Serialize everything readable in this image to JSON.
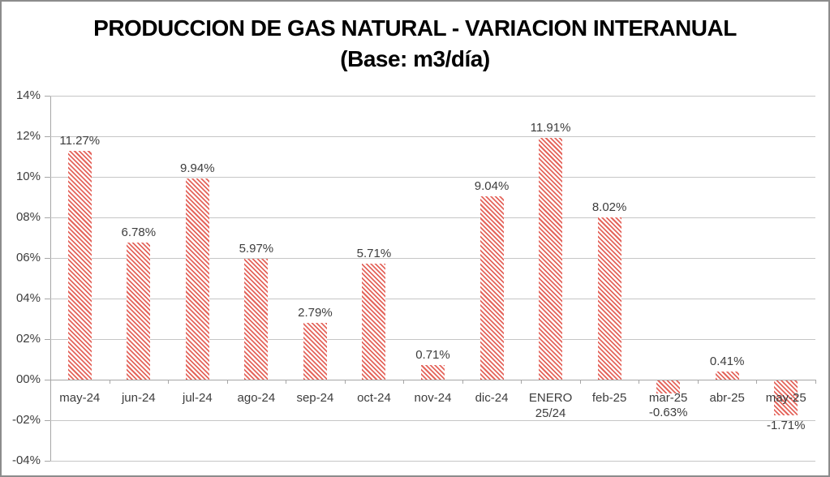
{
  "title": {
    "line1": "PRODUCCION DE GAS NATURAL - VARIACION INTERANUAL",
    "line2": "(Base: m3/día)"
  },
  "chart_data": {
    "type": "bar",
    "title": "PRODUCCION DE GAS NATURAL - VARIACION INTERANUAL (Base: m3/día)",
    "categories": [
      "may-24",
      "jun-24",
      "jul-24",
      "ago-24",
      "sep-24",
      "oct-24",
      "nov-24",
      "dic-24",
      "ENERO\n25/24",
      "feb-25",
      "mar-25",
      "abr-25",
      "may-25"
    ],
    "values": [
      11.27,
      6.78,
      9.94,
      5.97,
      2.79,
      5.71,
      0.71,
      9.04,
      11.91,
      8.02,
      -0.63,
      0.41,
      -1.71
    ],
    "data_labels": [
      "11.27%",
      "6.78%",
      "9.94%",
      "5.97%",
      "2.79%",
      "5.71%",
      "0.71%",
      "9.04%",
      "11.91%",
      "8.02%",
      "-0.63%",
      "0.41%",
      "-1.71%"
    ],
    "xlabel": "",
    "ylabel": "",
    "ylim": [
      -4,
      14
    ],
    "y_tick_values": [
      14,
      12,
      10,
      8,
      6,
      4,
      2,
      0,
      -2,
      -4
    ],
    "y_tick_labels": [
      "14%",
      "12%",
      "10%",
      "08%",
      "06%",
      "04%",
      "02%",
      "00%",
      "-02%",
      "-04%"
    ],
    "grid": true,
    "legend": "none",
    "bar_style": "diagonal-hatch-down",
    "bar_stripe_color": "#e4655c",
    "bar_background_color": "#ffffff",
    "gridline_color": "#c6c6c6",
    "axis_color": "#a6a6a6",
    "label_color": "#3d3d3d",
    "title_color": "#000000"
  }
}
